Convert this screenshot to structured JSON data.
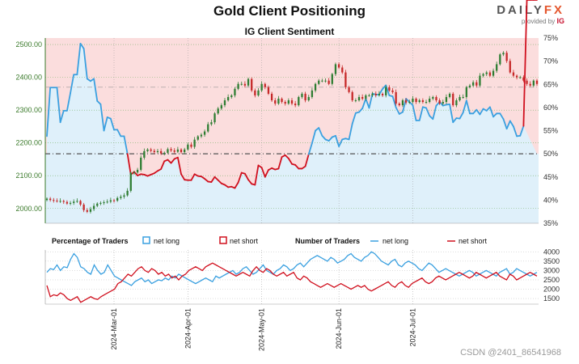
{
  "title": "Gold Client Positioning",
  "subtitle": "IG Client Sentiment",
  "brand": {
    "logo_main": "DAILY",
    "logo_accent": "FX",
    "provided_by": "provided by",
    "ig": "IG"
  },
  "watermark": "CSDN @2401_86541968",
  "colors": {
    "long": "#3aa0e0",
    "short": "#d0101e",
    "long_fill": "#dff0fa",
    "short_fill": "#fbdddd",
    "candle_up": "#2e7d32",
    "candle_down": "#c62828"
  },
  "chart_data": [
    {
      "type": "candlestick+line",
      "title": "IG Client Sentiment",
      "left_axis": {
        "ticks": [
          2000,
          2100,
          2200,
          2300,
          2400,
          2500
        ],
        "tick_labels": [
          "2000.00",
          "2100.00",
          "2200.00",
          "2300.00",
          "2400.00",
          "2500.00"
        ],
        "range": [
          1955,
          2520
        ]
      },
      "right_axis": {
        "ticks": [
          35,
          40,
          45,
          50,
          55,
          60,
          65,
          70,
          75
        ],
        "tick_labels": [
          "35%",
          "40%",
          "45%",
          "50%",
          "55%",
          "60%",
          "65%",
          "70%",
          "75%"
        ],
        "range": [
          35,
          75
        ]
      },
      "reference_lines": [
        {
          "axis": "right",
          "value": 50,
          "style": "dash-dot"
        },
        {
          "axis": "left",
          "value": 2370,
          "style": "dash-dot"
        }
      ],
      "price_close": [
        2030,
        2026,
        2024,
        2022,
        2023,
        2020,
        2015,
        2017,
        2021,
        2023,
        2012,
        1995,
        1990,
        1998,
        2008,
        2015,
        2017,
        2019,
        2021,
        2025,
        2024,
        2032,
        2036,
        2040,
        2054,
        2109,
        2110,
        2118,
        2155,
        2175,
        2180,
        2176,
        2172,
        2175,
        2168,
        2170,
        2181,
        2177,
        2173,
        2180,
        2172,
        2180,
        2195,
        2188,
        2210,
        2220,
        2225,
        2235,
        2257,
        2263,
        2290,
        2305,
        2315,
        2330,
        2340,
        2345,
        2365,
        2380,
        2380,
        2375,
        2395,
        2360,
        2345,
        2360,
        2380,
        2370,
        2350,
        2330,
        2320,
        2335,
        2325,
        2320,
        2330,
        2320,
        2315,
        2340,
        2350,
        2330,
        2340,
        2360,
        2380,
        2390,
        2390,
        2390,
        2380,
        2410,
        2440,
        2430,
        2415,
        2370,
        2355,
        2330,
        2330,
        2340,
        2335,
        2345,
        2345,
        2350,
        2345,
        2350,
        2345,
        2370,
        2360,
        2355,
        2320,
        2315,
        2330,
        2323,
        2325,
        2335,
        2325,
        2330,
        2325,
        2325,
        2335,
        2340,
        2330,
        2320,
        2325,
        2340,
        2350,
        2315,
        2330,
        2340,
        2340,
        2370,
        2375,
        2385,
        2375,
        2405,
        2410,
        2415,
        2405,
        2420,
        2440,
        2470,
        2475,
        2450,
        2415,
        2405,
        2400,
        2400,
        2390,
        2380,
        2375,
        2390,
        2380
      ],
      "percent_long": [
        53.8,
        64.3,
        64.3,
        64.3,
        56.8,
        59.3,
        59.3,
        63.1,
        67.1,
        67.1,
        73.8,
        72.7,
        66.2,
        65.7,
        66.2,
        61.4,
        60.7,
        55.0,
        57.9,
        57.6,
        55.2,
        55.2,
        53.8,
        53.8,
        50.0,
        45.5,
        46.1,
        45.3,
        45.6,
        45.5,
        45.2,
        45.5,
        45.8,
        46.3,
        46.7,
        48.4,
        48.7,
        48.0,
        48.9,
        49.2,
        45.6,
        44.4,
        44.3,
        44.3,
        45.6,
        45.2,
        45.1,
        44.6,
        44.0,
        43.9,
        45.0,
        44.3,
        43.6,
        43.3,
        42.8,
        42.9,
        42.6,
        43.8,
        45.9,
        45.7,
        44.4,
        43.5,
        43.3,
        47.5,
        47.0,
        45.0,
        46.5,
        46.9,
        46.6,
        46.8,
        49.3,
        49.7,
        49.0,
        47.8,
        47.6,
        46.8,
        46.8,
        47.3,
        49.9,
        52.3,
        55.0,
        55.6,
        53.9,
        53.1,
        52.8,
        53.6,
        53.9,
        51.6,
        53.1,
        53.3,
        53.1,
        56.5,
        58.8,
        59.0,
        59.8,
        61.9,
        59.9,
        63.0,
        62.8,
        62.8,
        64.0,
        64.8,
        62.6,
        62.4,
        60.0,
        58.6,
        59.0,
        61.9,
        61.2,
        60.5,
        57.2,
        57.2,
        60.1,
        59.9,
        58.2,
        57.5,
        60.4,
        61.2,
        60.4,
        60.6,
        60.7,
        56.8,
        57.7,
        57.6,
        58.9,
        61.5,
        58.7,
        58.7,
        59.5,
        58.5,
        59.7,
        59.3,
        60.1,
        58.0,
        58.7,
        58.7,
        57.5,
        55.4,
        57.1,
        55.9,
        53.8,
        53.9,
        56.0
      ],
      "x_tick_labels": [
        "2024-Mar-01",
        "2024-Apr-01",
        "2024-May-01",
        "2024-Jun-01",
        "2024-Jul-01"
      ],
      "x_tick_index": [
        20,
        42,
        64,
        87,
        109
      ]
    },
    {
      "type": "line",
      "legend": {
        "percentage_title": "Percentage of Traders",
        "long_pct_label": "net long",
        "short_pct_label": "net short",
        "number_title": "Number of Traders",
        "long_num_label": "net long",
        "short_num_label": "net short"
      },
      "right_axis": {
        "ticks": [
          1500,
          2000,
          2500,
          3000,
          3500,
          4000
        ],
        "tick_labels": [
          "1500",
          "2000",
          "2500",
          "3000",
          "3500",
          "4000"
        ],
        "range": [
          1200,
          4100
        ]
      },
      "net_long_traders": [
        2900,
        3100,
        3050,
        3300,
        3000,
        3200,
        3150,
        3600,
        3900,
        3700,
        3200,
        3100,
        2900,
        2800,
        3300,
        3000,
        2800,
        2900,
        3300,
        3000,
        2700,
        2600,
        2500,
        2400,
        2300,
        2200,
        2400,
        2500,
        2600,
        2400,
        2500,
        2300,
        2400,
        2500,
        2450,
        2600,
        2500,
        2700,
        2600,
        2800,
        2700,
        2600,
        2500,
        2400,
        2300,
        2400,
        2500,
        2600,
        2500,
        2400,
        2700,
        2600,
        2700,
        2800,
        2900,
        3000,
        2800,
        2900,
        3100,
        3200,
        3000,
        2800,
        2900,
        3100,
        3300,
        3000,
        2900,
        2800,
        3000,
        3100,
        3300,
        3200,
        3000,
        3100,
        3300,
        3400,
        3200,
        3400,
        3600,
        3700,
        3800,
        3700,
        3600,
        3500,
        3700,
        3600,
        3400,
        3500,
        3600,
        3800,
        3900,
        3700,
        3600,
        3500,
        3700,
        3800,
        4000,
        3900,
        3700,
        3500,
        3400,
        3300,
        3500,
        3600,
        3300,
        3200,
        3400,
        3500,
        3400,
        3300,
        3100,
        3000,
        3200,
        3400,
        3300,
        3100,
        2900,
        3000,
        3100,
        3000,
        2900,
        2800,
        2700,
        2800,
        2900,
        3000,
        2900,
        2700,
        2800,
        2900,
        3000,
        2900,
        2800,
        2700,
        2900,
        3000,
        3100,
        2800,
        2900,
        3100,
        3000,
        2900,
        2800,
        2700,
        2800,
        2900
      ],
      "net_short_traders": [
        2200,
        1600,
        1700,
        1650,
        1800,
        1700,
        1500,
        1400,
        1500,
        1600,
        1300,
        1400,
        1500,
        1600,
        1500,
        1450,
        1600,
        1700,
        1800,
        1900,
        2000,
        2300,
        2400,
        2600,
        2800,
        2700,
        2900,
        3100,
        3200,
        3000,
        2900,
        3100,
        3000,
        2800,
        2900,
        2700,
        2800,
        2600,
        2700,
        2500,
        2700,
        2800,
        3000,
        3100,
        3200,
        3100,
        3000,
        3200,
        3300,
        3400,
        3300,
        3200,
        3100,
        3000,
        2900,
        2800,
        2700,
        2800,
        2900,
        2800,
        2700,
        3000,
        3200,
        3000,
        2900,
        3100,
        3000,
        2800,
        2700,
        2800,
        2900,
        2700,
        2800,
        2900,
        2600,
        2500,
        2700,
        2600,
        2400,
        2300,
        2200,
        2100,
        2200,
        2300,
        2200,
        2100,
        2200,
        2300,
        2200,
        2100,
        2000,
        2100,
        2200,
        2100,
        2200,
        2000,
        1900,
        2000,
        2100,
        2200,
        2300,
        2400,
        2200,
        2100,
        2300,
        2400,
        2200,
        2100,
        2300,
        2400,
        2500,
        2600,
        2400,
        2300,
        2400,
        2600,
        2700,
        2600,
        2500,
        2600,
        2700,
        2800,
        2900,
        2800,
        2700,
        2600,
        2700,
        2900,
        2800,
        2700,
        2600,
        2700,
        2800,
        2900,
        2700,
        2600,
        2500,
        2800,
        2700,
        2500,
        2600,
        2700,
        2800,
        2900,
        2800,
        2700
      ]
    }
  ]
}
